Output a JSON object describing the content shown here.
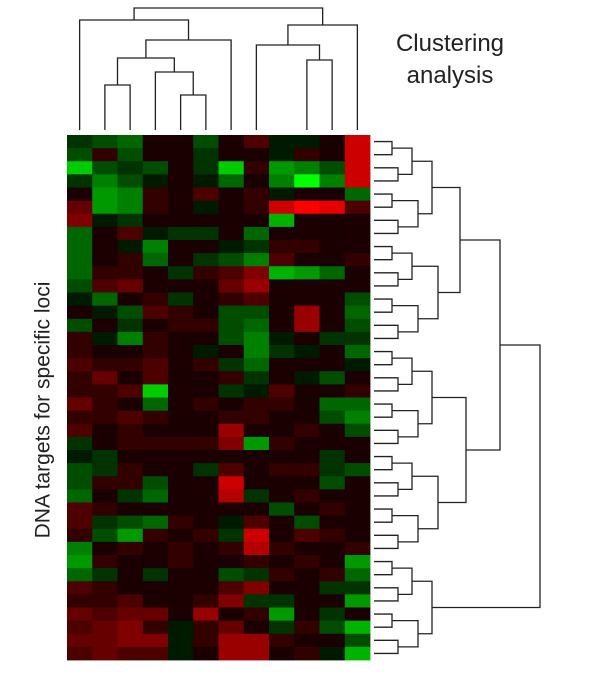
{
  "chart_data": {
    "type": "heatmap",
    "title": "Clustering analysis",
    "y_label": "DNA targets for specific loci",
    "values": [
      [
        -0.2,
        -0.3,
        -0.4,
        0.1,
        0.1,
        -0.3,
        0.1,
        0.3,
        -0.1,
        -0.1,
        0.1,
        0.8
      ],
      [
        -0.3,
        0.2,
        -0.3,
        0.1,
        0.1,
        -0.2,
        0.1,
        0.1,
        -0.1,
        0.2,
        0.1,
        0.8
      ],
      [
        -0.8,
        -0.3,
        -0.2,
        -0.3,
        0.1,
        -0.2,
        -0.8,
        0.2,
        -0.6,
        -0.5,
        -0.3,
        0.8
      ],
      [
        -0.2,
        -0.5,
        -0.3,
        -0.1,
        0.1,
        -0.1,
        -0.4,
        0.1,
        -0.5,
        -1.0,
        -0.5,
        0.8
      ],
      [
        0.1,
        -0.6,
        -0.5,
        0.2,
        0.1,
        0.3,
        0.1,
        0.2,
        -0.1,
        0.1,
        0.1,
        -0.4
      ],
      [
        0.4,
        -0.6,
        -0.5,
        0.2,
        0.1,
        -0.1,
        0.1,
        0.2,
        0.8,
        1.0,
        0.9,
        0.3
      ],
      [
        0.5,
        -0.1,
        -0.2,
        0.1,
        0.1,
        0.1,
        0.1,
        0.1,
        -0.7,
        0.1,
        0.1,
        0.1
      ],
      [
        -0.4,
        0.1,
        0.3,
        -0.1,
        -0.2,
        -0.2,
        0.1,
        -0.4,
        0.1,
        0.1,
        0.1,
        0.1
      ],
      [
        -0.4,
        0.1,
        -0.1,
        -0.5,
        0.1,
        0.1,
        -0.1,
        -0.2,
        0.2,
        0.2,
        0.1,
        0.1
      ],
      [
        -0.4,
        0.1,
        0.2,
        -0.4,
        0.1,
        -0.2,
        -0.3,
        -0.5,
        0.3,
        0.1,
        0.1,
        0.2
      ],
      [
        -0.4,
        0.2,
        0.2,
        0.1,
        -0.2,
        0.2,
        0.3,
        0.5,
        -0.7,
        -0.6,
        -0.4,
        0.1
      ],
      [
        -0.3,
        0.3,
        0.4,
        0.1,
        0.1,
        0.1,
        0.4,
        0.6,
        0.1,
        0.1,
        0.1,
        0.1
      ],
      [
        -0.1,
        -0.4,
        0.1,
        0.2,
        -0.2,
        0.1,
        0.2,
        0.3,
        0.1,
        0.1,
        0.1,
        -0.3
      ],
      [
        0.1,
        -0.1,
        -0.3,
        0.3,
        0.2,
        0.1,
        -0.3,
        -0.3,
        0.1,
        0.6,
        0.1,
        -0.4
      ],
      [
        -0.3,
        0.1,
        -0.2,
        0.1,
        0.2,
        0.2,
        -0.3,
        -0.4,
        0.1,
        0.6,
        0.1,
        -0.3
      ],
      [
        0.2,
        -0.1,
        -0.5,
        0.2,
        0.1,
        0.1,
        -0.3,
        -0.5,
        -0.1,
        0.1,
        -0.2,
        -0.2
      ],
      [
        0.2,
        0.1,
        0.1,
        0.2,
        0.1,
        -0.1,
        0.1,
        -0.5,
        -0.2,
        -0.1,
        0.1,
        -0.4
      ],
      [
        0.3,
        0.2,
        0.2,
        0.3,
        0.1,
        0.2,
        -0.2,
        -0.4,
        0.1,
        0.1,
        0.1,
        -0.1
      ],
      [
        0.2,
        0.4,
        0.1,
        0.3,
        0.1,
        0.1,
        0.2,
        -0.2,
        0.1,
        -0.1,
        -0.3,
        0.1
      ],
      [
        0.2,
        0.2,
        0.3,
        -0.8,
        0.1,
        0.1,
        -0.2,
        -0.1,
        0.3,
        0.1,
        0.1,
        0.2
      ],
      [
        0.4,
        0.2,
        0.1,
        -0.4,
        0.1,
        0.2,
        0.1,
        0.2,
        0.2,
        0.1,
        -0.4,
        -0.4
      ],
      [
        0.2,
        0.2,
        0.3,
        0.2,
        0.1,
        0.1,
        0.2,
        0.2,
        0.1,
        0.1,
        -0.3,
        -0.5
      ],
      [
        0.3,
        0.1,
        0.2,
        0.1,
        0.1,
        0.1,
        0.6,
        0.1,
        0.1,
        0.2,
        0.1,
        -0.3
      ],
      [
        -0.2,
        0.1,
        0.2,
        0.2,
        0.2,
        0.2,
        0.5,
        -0.6,
        0.2,
        0.1,
        0.1,
        0.1
      ],
      [
        -0.1,
        -0.2,
        0.1,
        0.1,
        0.1,
        0.1,
        0.1,
        0.1,
        0.1,
        0.1,
        -0.2,
        0.1
      ],
      [
        -0.3,
        -0.2,
        0.2,
        0.1,
        0.1,
        -0.2,
        0.3,
        0.1,
        0.2,
        0.2,
        -0.2,
        -0.3
      ],
      [
        -0.3,
        0.2,
        0.2,
        -0.3,
        0.1,
        0.1,
        0.8,
        0.1,
        0.1,
        0.1,
        -0.3,
        0.1
      ],
      [
        -0.4,
        0.1,
        -0.2,
        -0.4,
        0.1,
        0.1,
        0.7,
        -0.2,
        0.1,
        0.2,
        0.1,
        0.1
      ],
      [
        0.3,
        0.2,
        0.1,
        0.1,
        0.1,
        0.1,
        0.1,
        0.1,
        -0.3,
        0.1,
        0.2,
        0.1
      ],
      [
        0.3,
        -0.2,
        -0.3,
        -0.4,
        0.2,
        0.1,
        -0.1,
        0.3,
        0.1,
        -0.3,
        0.1,
        0.1
      ],
      [
        0.2,
        -0.3,
        -0.6,
        0.2,
        0.1,
        0.2,
        -0.2,
        0.8,
        0.1,
        0.3,
        0.2,
        0.1
      ],
      [
        -0.5,
        0.1,
        0.2,
        0.1,
        0.2,
        0.1,
        0.2,
        0.7,
        0.2,
        0.1,
        0.1,
        0.2
      ],
      [
        -0.6,
        0.2,
        0.1,
        0.1,
        0.2,
        0.1,
        0.1,
        0.2,
        0.1,
        0.2,
        0.1,
        -0.6
      ],
      [
        -0.4,
        -0.2,
        0.1,
        -0.2,
        0.1,
        0.1,
        -0.3,
        -0.2,
        0.2,
        0.1,
        0.2,
        -0.4
      ],
      [
        0.3,
        0.2,
        0.1,
        0.1,
        0.1,
        0.1,
        0.3,
        0.5,
        0.1,
        0.1,
        -0.2,
        -0.2
      ],
      [
        0.2,
        0.2,
        0.3,
        0.1,
        0.1,
        0.2,
        0.5,
        -0.2,
        -0.2,
        0.1,
        0.1,
        -0.6
      ],
      [
        0.4,
        0.3,
        0.4,
        0.4,
        0.1,
        0.6,
        0.1,
        0.2,
        -0.6,
        0.1,
        -0.2,
        0.1
      ],
      [
        0.3,
        0.4,
        0.5,
        0.2,
        -0.1,
        0.2,
        0.4,
        0.1,
        -0.2,
        0.2,
        -0.3,
        -0.7
      ],
      [
        0.4,
        0.4,
        0.5,
        0.5,
        -0.1,
        0.2,
        0.6,
        0.6,
        0.2,
        0.1,
        0.1,
        -0.3
      ],
      [
        0.3,
        0.4,
        0.3,
        0.3,
        -0.1,
        0.1,
        0.6,
        0.6,
        0.1,
        0.2,
        -0.1,
        -0.7
      ]
    ]
  }
}
